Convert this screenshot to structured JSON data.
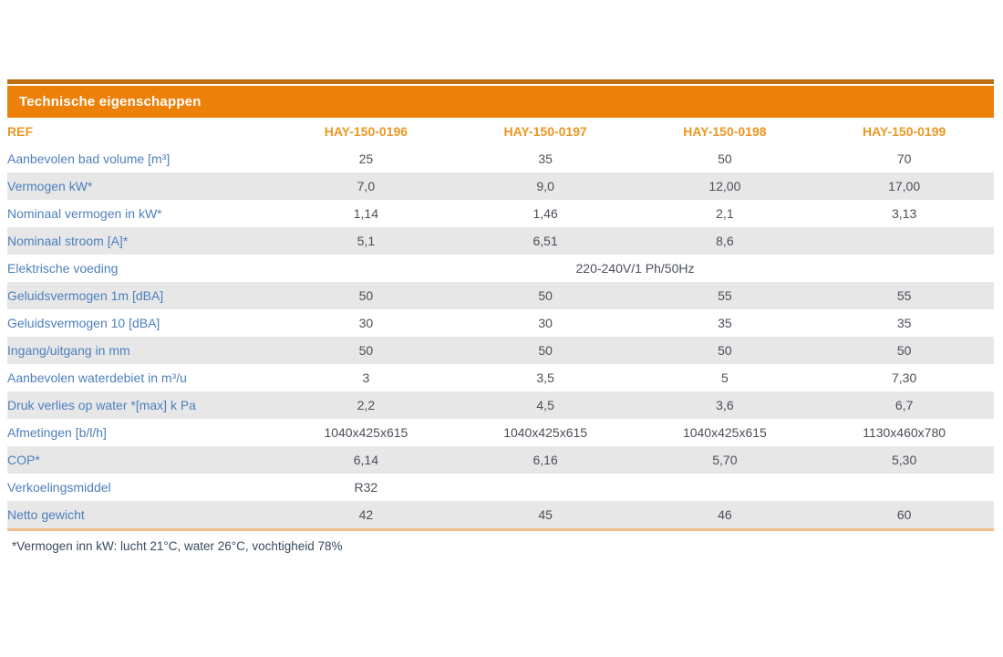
{
  "table": {
    "title": "Technische eigenschappen",
    "ref_label": "REF",
    "columns": [
      "HAY-150-0196",
      "HAY-150-0197",
      "HAY-150-0198",
      "HAY-150-0199"
    ],
    "rows": [
      {
        "label": "Aanbevolen bad volume [m³]",
        "values": [
          "25",
          "35",
          "50",
          "70"
        ]
      },
      {
        "label": "Vermogen kW*",
        "values": [
          "7,0",
          "9,0",
          "12,00",
          "17,00"
        ]
      },
      {
        "label": "Nominaal vermogen in kW*",
        "values": [
          "1,14",
          "1,46",
          "2,1",
          "3,13"
        ]
      },
      {
        "label": "Nominaal stroom [A]*",
        "values": [
          "5,1",
          "6,51",
          "8,6",
          ""
        ]
      },
      {
        "label": "Elektrische voeding",
        "span_value": "220-240V/1 Ph/50Hz"
      },
      {
        "label": "Geluidsvermogen 1m [dBA]",
        "values": [
          "50",
          "50",
          "55",
          "55"
        ]
      },
      {
        "label": "Geluidsvermogen 10 [dBA]",
        "values": [
          "30",
          "30",
          "35",
          "35"
        ]
      },
      {
        "label": "Ingang/uitgang in mm",
        "values": [
          "50",
          "50",
          "50",
          "50"
        ]
      },
      {
        "label": "Aanbevolen waterdebiet in m³/u",
        "values": [
          "3",
          "3,5",
          "5",
          "7,30"
        ]
      },
      {
        "label": "Druk verlies op water *[max] k Pa",
        "values": [
          "2,2",
          "4,5",
          "3,6",
          "6,7"
        ]
      },
      {
        "label": "Afmetingen [b/l/h]",
        "values": [
          "1040x425x615",
          "1040x425x615",
          "1040x425x615",
          "1130x460x780"
        ]
      },
      {
        "label": "COP*",
        "values": [
          "6,14",
          "6,16",
          "5,70",
          "5,30"
        ]
      },
      {
        "label": "Verkoelingsmiddel",
        "values": [
          "R32",
          "",
          "",
          ""
        ]
      },
      {
        "label": "Netto gewicht",
        "values": [
          "42",
          "45",
          "46",
          "60"
        ]
      }
    ],
    "footnote": "*Vermogen inn kW: lucht 21°C, water 26°C, vochtigheid 78%"
  },
  "colors": {
    "header_bar_orange": "#ec8009",
    "header_top_line": "#bc6d0e",
    "accent_text_orange": "#eb9722",
    "row_label_blue": "#4e80bc",
    "value_text": "#4b4f58",
    "stripe_gray": "#e7e7e8",
    "bottom_border": "#efbe8a"
  }
}
